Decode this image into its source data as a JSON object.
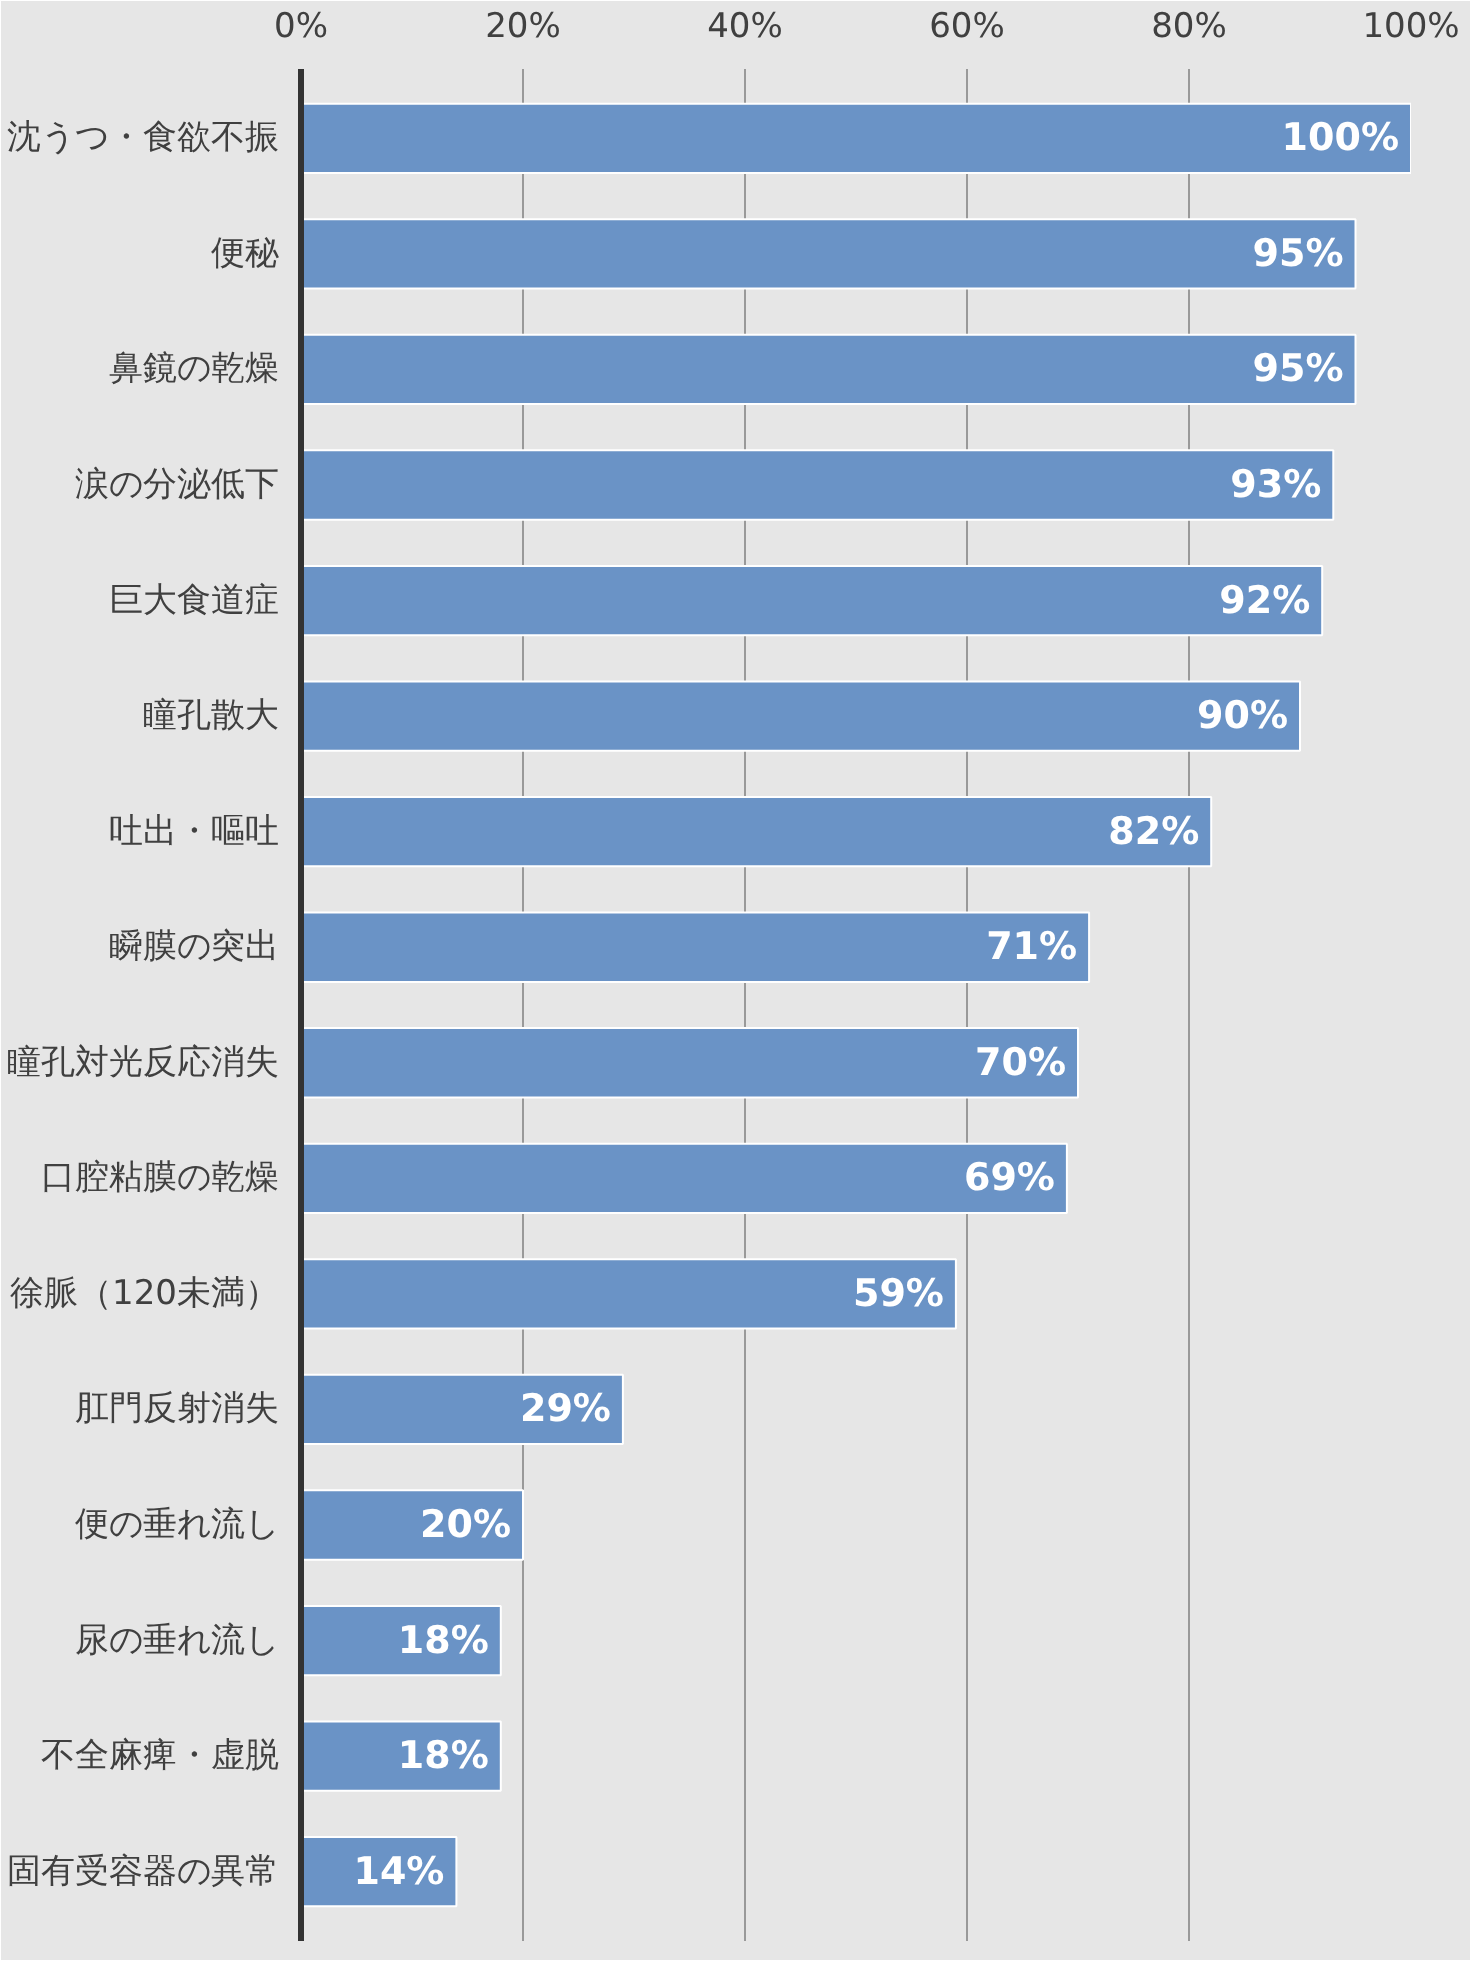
{
  "chart_data": {
    "type": "bar",
    "orientation": "horizontal",
    "categories": [
      "沈うつ・食欲不振",
      "便秘",
      "鼻鏡の乾燥",
      "涙の分泌低下",
      "巨大食道症",
      "瞳孔散大",
      "吐出・嘔吐",
      "瞬膜の突出",
      "瞳孔対光反応消失",
      "口腔粘膜の乾燥",
      "徐脈（120未満）",
      "肛門反射消失",
      "便の垂れ流し",
      "尿の垂れ流し",
      "不全麻痺・虚脱",
      "固有受容器の異常"
    ],
    "values": [
      100,
      95,
      95,
      93,
      92,
      90,
      82,
      71,
      70,
      69,
      59,
      29,
      20,
      18,
      18,
      14
    ],
    "value_labels": [
      "100%",
      "95%",
      "95%",
      "93%",
      "92%",
      "90%",
      "82%",
      "71%",
      "70%",
      "69%",
      "59%",
      "29%",
      "20%",
      "18%",
      "18%",
      "14%"
    ],
    "color": "#6a93c6",
    "xlim": [
      0,
      100
    ],
    "xticks": [
      {
        "value": 0,
        "label": "0%"
      },
      {
        "value": 20,
        "label": "20%"
      },
      {
        "value": 40,
        "label": "40%"
      },
      {
        "value": 60,
        "label": "60%"
      },
      {
        "value": 80,
        "label": "80%"
      },
      {
        "value": 100,
        "label": "100%"
      }
    ],
    "grid": "x"
  }
}
